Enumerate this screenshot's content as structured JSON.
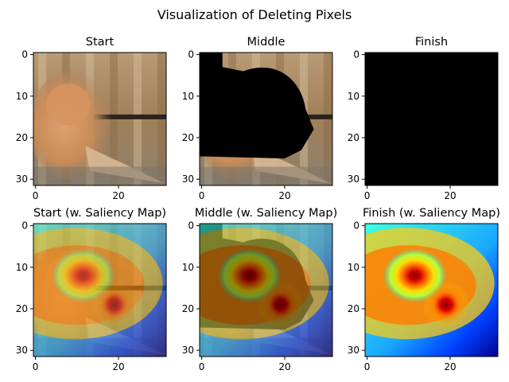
{
  "title": "Visualization of Deleting Pixels",
  "panels": [
    {
      "title": "Start",
      "image": "cat-photo",
      "overlay": "none",
      "xticks": [
        "0",
        "20"
      ],
      "yticks": [
        "0",
        "10",
        "20",
        "30"
      ]
    },
    {
      "title": "Middle",
      "image": "cat-photo-partially-deleted",
      "overlay": "none",
      "xticks": [
        "0",
        "20"
      ],
      "yticks": [
        "0",
        "10",
        "20",
        "30"
      ]
    },
    {
      "title": "Finish",
      "image": "fully-deleted-black",
      "overlay": "none",
      "xticks": [
        "0",
        "20"
      ],
      "yticks": [
        "0",
        "10",
        "20",
        "30"
      ]
    },
    {
      "title": "Start (w. Saliency Map)",
      "image": "cat-photo",
      "overlay": "jet-saliency",
      "xticks": [
        "0",
        "20"
      ],
      "yticks": [
        "0",
        "10",
        "20",
        "30"
      ]
    },
    {
      "title": "Middle (w. Saliency Map)",
      "image": "cat-photo-partially-deleted",
      "overlay": "jet-saliency",
      "xticks": [
        "0",
        "20"
      ],
      "yticks": [
        "0",
        "10",
        "20",
        "30"
      ]
    },
    {
      "title": "Finish (w. Saliency Map)",
      "image": "fully-deleted-black",
      "overlay": "jet-saliency",
      "xticks": [
        "0",
        "20"
      ],
      "yticks": [
        "0",
        "10",
        "20",
        "30"
      ]
    }
  ],
  "chart_data": {
    "type": "heatmap",
    "title": "Visualization of Deleting Pixels",
    "grid": false,
    "image_size": [
      32,
      32
    ],
    "xlim": [
      -0.5,
      31.5
    ],
    "ylim": [
      31.5,
      -0.5
    ],
    "x_ticks": [
      0,
      20
    ],
    "y_ticks": [
      0,
      10,
      20,
      30
    ],
    "colormap": "jet",
    "saliency_peaks": [
      {
        "x": 11.5,
        "y": 12
      },
      {
        "x": 19,
        "y": 19
      }
    ],
    "panels": [
      "Start",
      "Middle",
      "Finish",
      "Start (w. Saliency Map)",
      "Middle (w. Saliency Map)",
      "Finish (w. Saliency Map)"
    ]
  }
}
